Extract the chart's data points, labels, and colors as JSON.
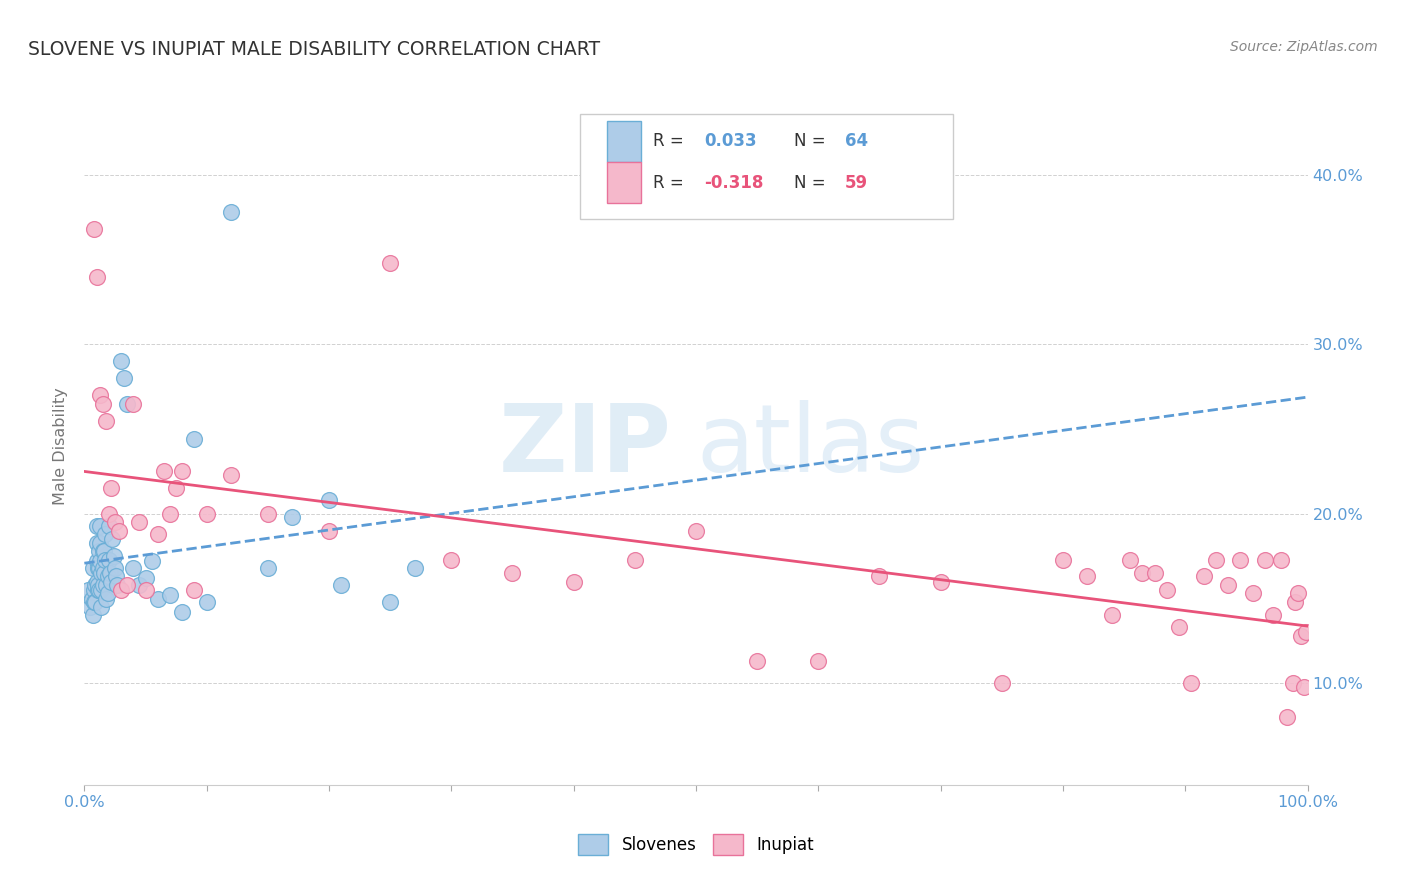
{
  "title": "SLOVENE VS INUPIAT MALE DISABILITY CORRELATION CHART",
  "source": "Source: ZipAtlas.com",
  "ylabel": "Male Disability",
  "xlim": [
    0.0,
    1.0
  ],
  "ylim": [
    0.04,
    0.44
  ],
  "y_ticks": [
    0.1,
    0.2,
    0.3,
    0.4
  ],
  "slovene_color": "#aecce8",
  "inupiat_color": "#f5b8cb",
  "slovene_edge_color": "#6aaed6",
  "inupiat_edge_color": "#e8729a",
  "slovene_line_color": "#5b9bd5",
  "inupiat_line_color": "#e8537a",
  "background_color": "#ffffff",
  "grid_color": "#cccccc",
  "title_color": "#333333",
  "source_color": "#888888",
  "axis_label_color": "#777777",
  "tick_color": "#5b9bd5",
  "slovene_R": "0.033",
  "slovene_N": "64",
  "inupiat_R": "-0.318",
  "inupiat_N": "59",
  "slovene_x": [
    0.003,
    0.005,
    0.006,
    0.007,
    0.007,
    0.008,
    0.008,
    0.009,
    0.009,
    0.01,
    0.01,
    0.01,
    0.01,
    0.011,
    0.011,
    0.011,
    0.012,
    0.012,
    0.012,
    0.013,
    0.013,
    0.013,
    0.014,
    0.014,
    0.014,
    0.015,
    0.015,
    0.015,
    0.016,
    0.016,
    0.017,
    0.017,
    0.018,
    0.018,
    0.019,
    0.019,
    0.02,
    0.02,
    0.021,
    0.022,
    0.023,
    0.024,
    0.025,
    0.026,
    0.027,
    0.03,
    0.032,
    0.035,
    0.04,
    0.045,
    0.05,
    0.055,
    0.06,
    0.07,
    0.08,
    0.09,
    0.1,
    0.12,
    0.15,
    0.17,
    0.2,
    0.21,
    0.25,
    0.27
  ],
  "slovene_y": [
    0.155,
    0.145,
    0.15,
    0.14,
    0.168,
    0.155,
    0.148,
    0.158,
    0.148,
    0.193,
    0.183,
    0.172,
    0.16,
    0.155,
    0.168,
    0.158,
    0.178,
    0.168,
    0.155,
    0.193,
    0.183,
    0.172,
    0.165,
    0.155,
    0.145,
    0.178,
    0.168,
    0.158,
    0.178,
    0.165,
    0.188,
    0.173,
    0.158,
    0.15,
    0.163,
    0.153,
    0.193,
    0.173,
    0.165,
    0.16,
    0.185,
    0.175,
    0.168,
    0.163,
    0.158,
    0.29,
    0.28,
    0.265,
    0.168,
    0.158,
    0.162,
    0.172,
    0.15,
    0.152,
    0.142,
    0.244,
    0.148,
    0.378,
    0.168,
    0.198,
    0.208,
    0.158,
    0.148,
    0.168
  ],
  "inupiat_x": [
    0.008,
    0.01,
    0.013,
    0.015,
    0.018,
    0.02,
    0.022,
    0.025,
    0.028,
    0.03,
    0.035,
    0.04,
    0.045,
    0.05,
    0.06,
    0.065,
    0.07,
    0.075,
    0.08,
    0.09,
    0.1,
    0.12,
    0.15,
    0.2,
    0.25,
    0.3,
    0.35,
    0.4,
    0.45,
    0.5,
    0.55,
    0.6,
    0.65,
    0.7,
    0.75,
    0.8,
    0.82,
    0.84,
    0.855,
    0.865,
    0.875,
    0.885,
    0.895,
    0.905,
    0.915,
    0.925,
    0.935,
    0.945,
    0.955,
    0.965,
    0.972,
    0.978,
    0.983,
    0.988,
    0.99,
    0.992,
    0.995,
    0.997,
    0.999
  ],
  "inupiat_y": [
    0.368,
    0.34,
    0.27,
    0.265,
    0.255,
    0.2,
    0.215,
    0.195,
    0.19,
    0.155,
    0.158,
    0.265,
    0.195,
    0.155,
    0.188,
    0.225,
    0.2,
    0.215,
    0.225,
    0.155,
    0.2,
    0.223,
    0.2,
    0.19,
    0.348,
    0.173,
    0.165,
    0.16,
    0.173,
    0.19,
    0.113,
    0.113,
    0.163,
    0.16,
    0.1,
    0.173,
    0.163,
    0.14,
    0.173,
    0.165,
    0.165,
    0.155,
    0.133,
    0.1,
    0.163,
    0.173,
    0.158,
    0.173,
    0.153,
    0.173,
    0.14,
    0.173,
    0.08,
    0.1,
    0.148,
    0.153,
    0.128,
    0.098,
    0.13
  ]
}
